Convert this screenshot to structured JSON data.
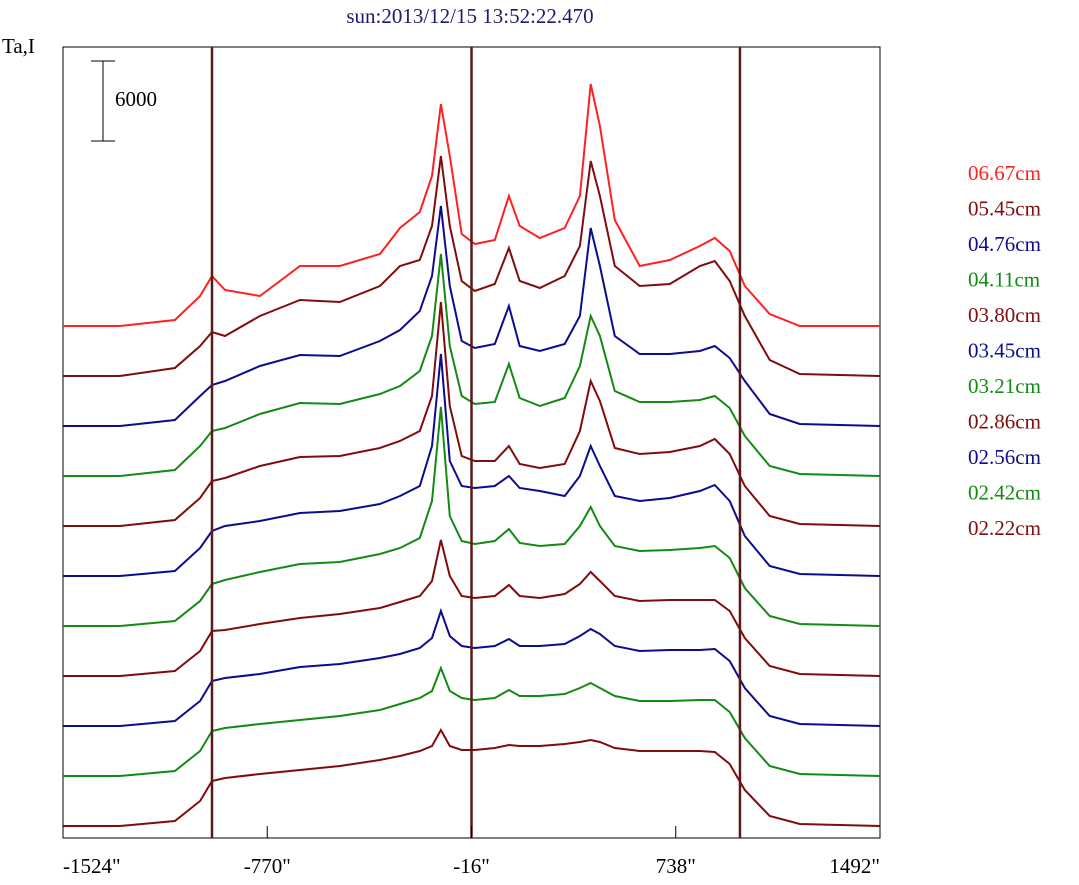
{
  "chart_data": {
    "type": "line",
    "title": "sun:2013/12/15 13:52:22.470",
    "y_label": "Ta,I",
    "scale_bar": 6000,
    "x": [
      -1524,
      -1314,
      -1111,
      -1018,
      -974,
      -926,
      -797,
      -649,
      -502,
      -354,
      -280,
      -207,
      -162,
      -129,
      -96,
      -52,
      -4,
      70,
      122,
      162,
      236,
      328,
      384,
      424,
      458,
      513,
      605,
      716,
      827,
      882,
      937,
      993,
      1085,
      1196,
      1492
    ],
    "xlim": [
      -1524,
      1492
    ],
    "xticks": [
      {
        "value": -1524,
        "label": "-1524\""
      },
      {
        "value": -770,
        "label": "-770\""
      },
      {
        "value": -16,
        "label": "-16\""
      },
      {
        "value": 738,
        "label": "738\""
      },
      {
        "value": 1492,
        "label": "1492\""
      }
    ],
    "vlines": [
      -974,
      -16,
      975
    ],
    "vline_color": "#5a1a1a",
    "series": [
      {
        "name": "06.67cm",
        "color": "#ff2020",
        "values": [
          0,
          0,
          450,
          2250,
          3750,
          2700,
          2250,
          4500,
          4500,
          5400,
          7350,
          8550,
          11250,
          16650,
          12750,
          6900,
          6150,
          6450,
          9750,
          7500,
          6600,
          7350,
          9750,
          18150,
          15000,
          7950,
          4500,
          4950,
          6000,
          6600,
          5625,
          3000,
          900,
          0,
          0
        ]
      },
      {
        "name": "05.45cm",
        "color": "#800c0c",
        "values": [
          0,
          0,
          600,
          2250,
          3300,
          3000,
          4500,
          5700,
          5550,
          6750,
          8250,
          8700,
          11250,
          16500,
          11250,
          7125,
          6375,
          6900,
          9600,
          7125,
          6600,
          7500,
          9750,
          16125,
          13500,
          8250,
          6750,
          6900,
          8250,
          8625,
          7125,
          4500,
          1200,
          150,
          0
        ]
      },
      {
        "name": "04.76cm",
        "color": "#0c0c8c",
        "values": [
          0,
          0,
          450,
          2250,
          3075,
          3375,
          4500,
          5325,
          5250,
          6375,
          7200,
          8625,
          11250,
          16500,
          10500,
          6375,
          5850,
          6150,
          9000,
          6000,
          5625,
          6150,
          8250,
          14850,
          12000,
          6750,
          5400,
          5400,
          5625,
          6000,
          5100,
          3375,
          900,
          150,
          0
        ]
      },
      {
        "name": "04.11cm",
        "color": "#138a13",
        "values": [
          0,
          0,
          450,
          2250,
          3375,
          3600,
          4650,
          5475,
          5400,
          6150,
          6750,
          7875,
          10500,
          16650,
          9750,
          6000,
          5400,
          5550,
          8400,
          5850,
          5250,
          5850,
          8250,
          12000,
          10500,
          6375,
          5550,
          5550,
          5700,
          6000,
          5100,
          3000,
          750,
          150,
          0
        ]
      },
      {
        "name": "03.80cm",
        "color": "#800c0c",
        "values": [
          0,
          0,
          450,
          2100,
          3375,
          3600,
          4500,
          5175,
          5250,
          5850,
          6375,
          7125,
          9750,
          16800,
          9000,
          5250,
          4875,
          4875,
          6000,
          4650,
          4350,
          4650,
          7125,
          10875,
          9375,
          5850,
          5400,
          5550,
          6000,
          6525,
          5400,
          3000,
          750,
          150,
          0
        ]
      },
      {
        "name": "03.45cm",
        "color": "#0c0c8c",
        "values": [
          0,
          0,
          375,
          2100,
          3375,
          3750,
          4125,
          4725,
          4875,
          5400,
          6000,
          6750,
          9750,
          16650,
          8625,
          6750,
          6600,
          6750,
          7500,
          6600,
          6375,
          6000,
          7500,
          9750,
          8250,
          6000,
          5625,
          5850,
          6375,
          6825,
          5625,
          3000,
          750,
          150,
          0
        ]
      },
      {
        "name": "03.21cm",
        "color": "#138a13",
        "values": [
          0,
          0,
          375,
          1875,
          3150,
          3450,
          4050,
          4650,
          4800,
          5400,
          5850,
          6600,
          9375,
          16425,
          8250,
          6375,
          6150,
          6375,
          7275,
          6225,
          6000,
          6150,
          7500,
          8925,
          7500,
          6000,
          5625,
          5700,
          5850,
          6000,
          5100,
          2850,
          750,
          150,
          0
        ]
      },
      {
        "name": "02.86cm",
        "color": "#800c0c",
        "values": [
          0,
          0,
          375,
          1875,
          3375,
          3450,
          3900,
          4350,
          4650,
          5100,
          5550,
          6000,
          7125,
          10200,
          7500,
          6000,
          5850,
          6000,
          6825,
          6000,
          5850,
          6150,
          6900,
          7800,
          7125,
          6000,
          5625,
          5700,
          5700,
          5700,
          4875,
          2850,
          750,
          150,
          0
        ]
      },
      {
        "name": "02.56cm",
        "color": "#0c0c8c",
        "values": [
          0,
          0,
          375,
          1875,
          3375,
          3600,
          3900,
          4425,
          4650,
          5100,
          5400,
          5850,
          6600,
          8625,
          6750,
          6000,
          5850,
          6000,
          6525,
          6000,
          6000,
          6150,
          6750,
          7275,
          6900,
          6000,
          5625,
          5700,
          5700,
          5775,
          4875,
          2850,
          750,
          150,
          0
        ]
      },
      {
        "name": "02.42cm",
        "color": "#138a13",
        "values": [
          0,
          0,
          375,
          1875,
          3375,
          3600,
          3900,
          4200,
          4500,
          4950,
          5400,
          5850,
          6375,
          8100,
          6375,
          5850,
          5700,
          5850,
          6450,
          6000,
          6000,
          6150,
          6600,
          6975,
          6600,
          6000,
          5625,
          5625,
          5700,
          5700,
          4800,
          2850,
          750,
          150,
          0
        ]
      },
      {
        "name": "02.22cm",
        "color": "#800c0c",
        "values": [
          0,
          0,
          375,
          1875,
          3375,
          3600,
          3900,
          4200,
          4500,
          4950,
          5250,
          5625,
          6000,
          7200,
          6000,
          5700,
          5700,
          5850,
          6075,
          6000,
          6000,
          6150,
          6300,
          6450,
          6300,
          5850,
          5625,
          5625,
          5625,
          5550,
          4650,
          2700,
          750,
          150,
          0
        ]
      }
    ]
  }
}
